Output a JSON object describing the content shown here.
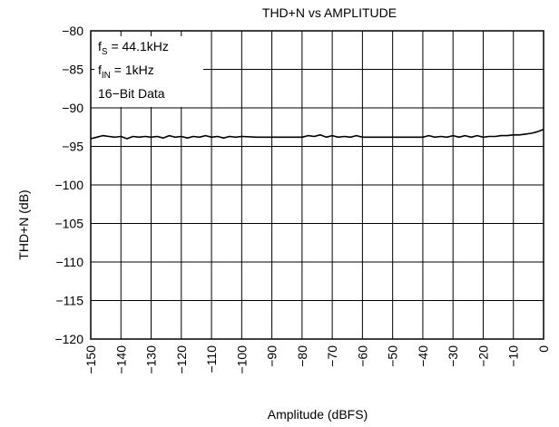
{
  "chart_data": {
    "type": "line",
    "title": "THD+N vs AMPLITUDE",
    "xlabel": "Amplitude (dBFS)",
    "ylabel": "THD+N (dB)",
    "xlim": [
      -150,
      0
    ],
    "ylim": [
      -120,
      -80
    ],
    "grid": true,
    "x_ticks": [
      -150,
      -140,
      -130,
      -120,
      -110,
      -100,
      -90,
      -80,
      -70,
      -60,
      -50,
      -40,
      -30,
      -20,
      -10,
      0
    ],
    "x_tick_labels": [
      "−150",
      "−140",
      "−130",
      "−120",
      "−110",
      "−100",
      "−90",
      "−80",
      "−70",
      "−60",
      "−50",
      "−40",
      "−30",
      "−20",
      "−10",
      "0"
    ],
    "y_ticks": [
      -80,
      -85,
      -90,
      -95,
      -100,
      -105,
      -110,
      -115,
      -120
    ],
    "y_tick_labels": [
      "−80",
      "−85",
      "−90",
      "−95",
      "−100",
      "−105",
      "−110",
      "−115",
      "−120"
    ],
    "annotation": {
      "lines": [
        {
          "main": "f",
          "sub": "S",
          "rest": " = 44.1kHz"
        },
        {
          "main": "f",
          "sub": "IN",
          "rest": " = 1kHz"
        },
        {
          "main": "16−Bit Data",
          "sub": "",
          "rest": ""
        }
      ]
    },
    "series": [
      {
        "x": [
          -150,
          -148,
          -146,
          -144,
          -142,
          -140,
          -138,
          -136,
          -134,
          -132,
          -130,
          -128,
          -126,
          -124,
          -122,
          -120,
          -118,
          -116,
          -114,
          -112,
          -110,
          -108,
          -106,
          -104,
          -102,
          -100,
          -95,
          -90,
          -85,
          -80,
          -78,
          -76,
          -74,
          -72,
          -70,
          -68,
          -66,
          -64,
          -62,
          -60,
          -55,
          -50,
          -45,
          -40,
          -38,
          -36,
          -34,
          -32,
          -30,
          -28,
          -26,
          -24,
          -22,
          -20,
          -18,
          -16,
          -14,
          -12,
          -10,
          -8,
          -6,
          -4,
          -2,
          0
        ],
        "y": [
          -94.0,
          -93.8,
          -93.6,
          -93.7,
          -93.8,
          -93.7,
          -94.0,
          -93.7,
          -93.8,
          -93.7,
          -93.8,
          -93.7,
          -93.9,
          -93.6,
          -93.8,
          -93.7,
          -93.9,
          -93.7,
          -93.8,
          -93.6,
          -93.8,
          -93.7,
          -93.9,
          -93.7,
          -93.8,
          -93.7,
          -93.8,
          -93.8,
          -93.8,
          -93.8,
          -93.6,
          -93.7,
          -93.5,
          -93.8,
          -93.6,
          -93.8,
          -93.7,
          -93.8,
          -93.6,
          -93.8,
          -93.8,
          -93.8,
          -93.8,
          -93.8,
          -93.6,
          -93.8,
          -93.7,
          -93.8,
          -93.6,
          -93.8,
          -93.6,
          -93.8,
          -93.6,
          -93.8,
          -93.7,
          -93.7,
          -93.6,
          -93.6,
          -93.5,
          -93.5,
          -93.4,
          -93.3,
          -93.1,
          -92.8
        ]
      }
    ]
  }
}
